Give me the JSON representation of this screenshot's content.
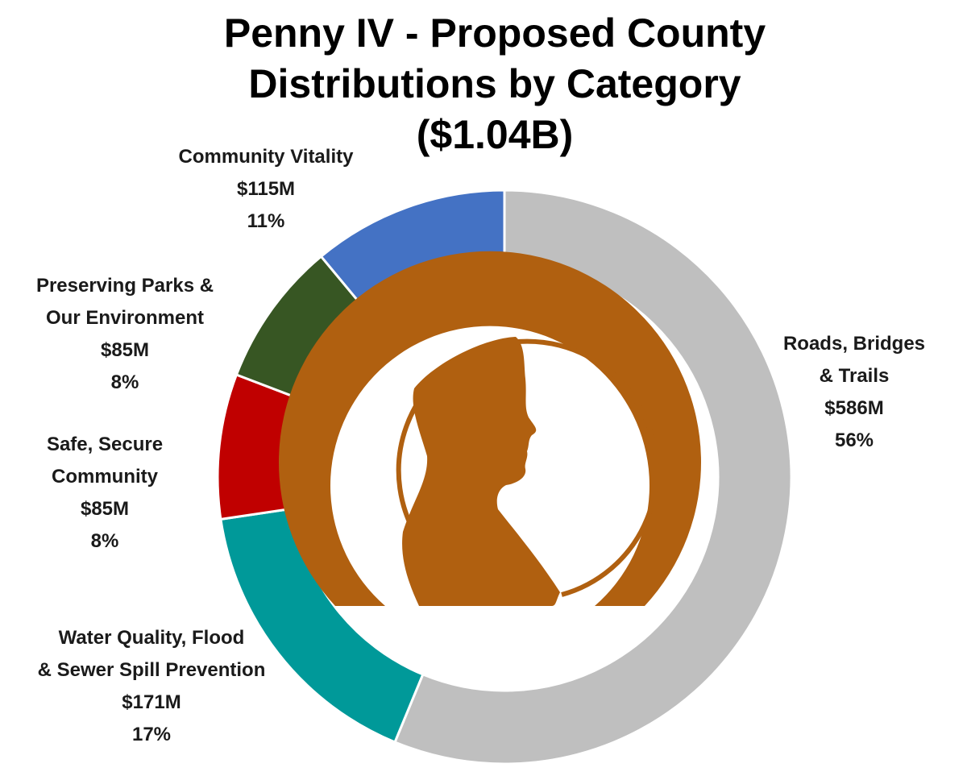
{
  "chart_data": {
    "type": "pie",
    "donut": true,
    "title_lines": [
      "Penny IV - Proposed County",
      "Distributions by Category",
      "($1.04B)"
    ],
    "total_label": "($1.04B)",
    "start_angle_deg": 0,
    "direction": "clockwise",
    "slices": [
      {
        "name_lines": [
          "Roads, Bridges",
          "& Trails"
        ],
        "amount": "$586M",
        "percent": "56%",
        "value": 586,
        "color": "#BFBFBF"
      },
      {
        "name_lines": [
          "Water Quality, Flood",
          "& Sewer Spill Prevention"
        ],
        "amount": "$171M",
        "percent": "17%",
        "value": 171,
        "color": "#009999"
      },
      {
        "name_lines": [
          "Safe, Secure",
          "Community"
        ],
        "amount": "$85M",
        "percent": "8%",
        "value": 85,
        "color": "#C00000"
      },
      {
        "name_lines": [
          "Preserving Parks &",
          "Our Environment"
        ],
        "amount": "$85M",
        "percent": "8%",
        "value": 85,
        "color": "#375623"
      },
      {
        "name_lines": [
          "Community Vitality"
        ],
        "amount": "$115M",
        "percent": "11%",
        "value": 115,
        "color": "#4472C4"
      }
    ],
    "center_emblem": {
      "description_icon": "penny-profile-icon",
      "color": "#B06010"
    }
  }
}
